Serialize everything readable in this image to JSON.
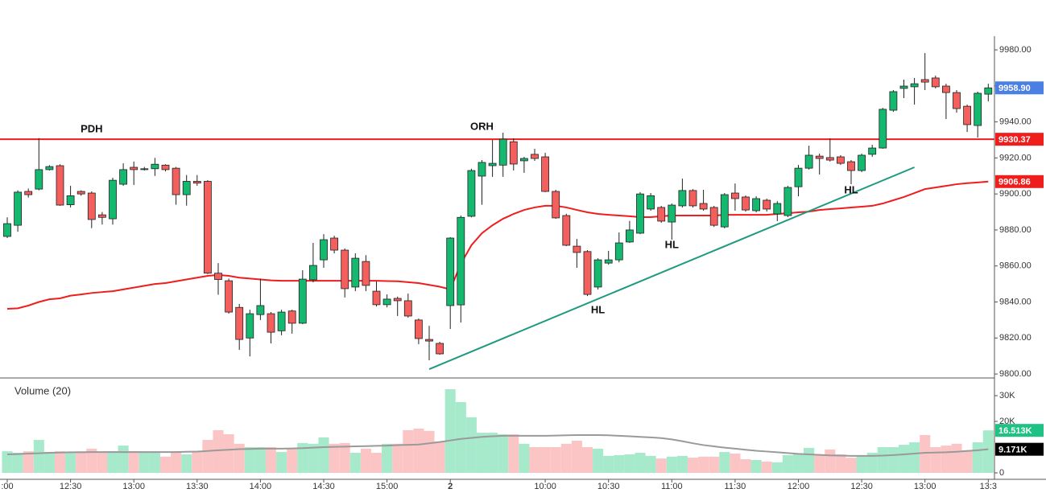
{
  "chart_data": {
    "type": "candlestick",
    "categories": [
      ":00",
      null,
      null,
      null,
      null,
      null,
      "12:30",
      null,
      null,
      null,
      null,
      null,
      "13:00",
      null,
      null,
      null,
      null,
      null,
      "13:30",
      null,
      null,
      null,
      null,
      null,
      "14:00",
      null,
      null,
      null,
      null,
      null,
      "14:30",
      null,
      null,
      null,
      null,
      null,
      "15:00",
      null,
      null,
      null,
      null,
      null,
      "2",
      null,
      null,
      null,
      null,
      null,
      null,
      null,
      null,
      "10:00",
      null,
      null,
      null,
      null,
      null,
      "10:30",
      null,
      null,
      null,
      null,
      null,
      "11:00",
      null,
      null,
      null,
      null,
      null,
      "11:30",
      null,
      null,
      null,
      null,
      null,
      "12:00",
      null,
      null,
      null,
      null,
      null,
      "12:30",
      null,
      null,
      null,
      null,
      null,
      "13:00",
      null,
      null,
      null,
      null,
      null,
      "13:3"
    ],
    "open": [
      9876.4,
      9882.6,
      9901.4,
      9902.7,
      9913.5,
      9915.7,
      9894,
      9901.4,
      9900.5,
      9888.4,
      9886.2,
      9905.4,
      9914.8,
      9913.5,
      9914,
      9916,
      9914.3,
      9899.6,
      9907,
      9907,
      9856,
      9851.8,
      9837,
      9820,
      9833,
      9833.5,
      9824,
      9835,
      9828.2,
      9852.3,
      9863.4,
      9875.5,
      9868.8,
      9848.3,
      9862.5,
      9846,
      9838.5,
      9842,
      9840.7,
      9830,
      9819.2,
      9817,
      9838,
      9838.4,
      9887.6,
      9909.9,
      9915.7,
      9916,
      9929,
      9918.4,
      9922,
      9920.6,
      9901.4,
      9888,
      9871,
      9868,
      9848.3,
      9861.6,
      9863.4,
      9873.3,
      9878.2,
      9891.6,
      9892.5,
      9884.4,
      9893.4,
      9901.9,
      9894.7,
      9892.5,
      9881.7,
      9900.5,
      9898.3,
      9890.7,
      9896.5,
      9888.9,
      9888,
      9904,
      9914.3,
      9921,
      9920.2,
      9920.6,
      9917.9,
      9913,
      9922,
      9925.5,
      9946.5,
      9958.6,
      9959.5,
      9963.5,
      9964.4,
      9959.9,
      9956.3,
      9948.7,
      9938,
      9955.4
    ],
    "high": [
      9887,
      9902,
      9903,
      9931,
      9916,
      9916.5,
      9904.5,
      9902,
      9901.4,
      9890,
      9909,
      9917,
      9918,
      9915,
      9920,
      9916.5,
      9915,
      9910.5,
      9910.5,
      9907.7,
      9861.6,
      9853,
      9838.9,
      9835.7,
      9853,
      9834.4,
      9835.7,
      9835.7,
      9857.6,
      9872.8,
      9877.7,
      9876.8,
      9869.7,
      9867,
      9866,
      9851.4,
      9844.2,
      9843,
      9844.7,
      9830.8,
      9826.8,
      9817.9,
      9876,
      9888,
      9914,
      9918.8,
      9930,
      9934,
      9930.9,
      9920.6,
      9925,
      9922.8,
      9902.3,
      9889,
      9875,
      9868.8,
      9864.3,
      9868.4,
      9878.6,
      9885,
      9901,
      9900.5,
      9893.4,
      9894.7,
      9908.5,
      9902.7,
      9902.3,
      9893.4,
      9900.5,
      9905.8,
      9899.2,
      9898.7,
      9897.4,
      9896,
      9904.5,
      9916.1,
      9926.8,
      9922.4,
      9930.9,
      9921.5,
      9918.8,
      9922.4,
      9927.3,
      9947.8,
      9957.7,
      9963.5,
      9964.4,
      9978.2,
      9965.7,
      9961.2,
      9957.7,
      9949.6,
      9956.8,
      9961.2
    ],
    "low": [
      9875.5,
      9879,
      9898,
      9902,
      9913,
      9893.4,
      9892.5,
      9899,
      9881,
      9883,
      9883,
      9904.5,
      9905,
      9913,
      9910,
      9912.5,
      9894,
      9893.5,
      9904.5,
      9855.5,
      9844,
      9833.5,
      9813.4,
      9809.8,
      9830,
      9817,
      9821.5,
      9822.4,
      9827.7,
      9850.9,
      9859,
      9867,
      9842.5,
      9846,
      9846,
      9837.5,
      9837,
      9832.2,
      9831.3,
      9816.6,
      9807.6,
      9810.7,
      9825,
      9828.6,
      9887,
      9894,
      9909.5,
      9909.5,
      9913,
      9911.7,
      9918.4,
      9901,
      9886.2,
      9871,
      9859,
      9843.3,
      9846.9,
      9860.7,
      9862,
      9872.8,
      9877.7,
      9890.7,
      9884,
      9874.6,
      9892.5,
      9892.5,
      9890.7,
      9881.7,
      9880.9,
      9890.7,
      9890.2,
      9889.8,
      9890.2,
      9884.9,
      9887.1,
      9898.7,
      9913.5,
      9910.8,
      9918,
      9916.1,
      9905.4,
      9912.1,
      9920.6,
      9925.1,
      9945.6,
      9953.2,
      9949.6,
      9957.7,
      9958.6,
      9941.6,
      9945.2,
      9934.4,
      9931.3,
      9951.4
    ],
    "close": [
      9883.5,
      9901,
      9899.6,
      9913.5,
      9915.2,
      9893.8,
      9899,
      9900,
      9885.8,
      9887,
      9907.6,
      9913.5,
      9913.5,
      9914,
      9916.5,
      9913.5,
      9899.6,
      9907,
      9906,
      9856,
      9852.5,
      9834.4,
      9819.2,
      9833.5,
      9838,
      9823.2,
      9834.4,
      9828.2,
      9852.7,
      9860.3,
      9874.6,
      9868.8,
      9847.4,
      9864.3,
      9849.2,
      9838.5,
      9841.6,
      9840.7,
      9832.2,
      9819.7,
      9818.3,
      9811.2,
      9875.5,
      9887,
      9913,
      9917.5,
      9917,
      9930.4,
      9916.6,
      9919.7,
      9919.7,
      9901.4,
      9886.7,
      9871.5,
      9867.5,
      9844.2,
      9863.4,
      9863.4,
      9872.8,
      9880,
      9900,
      9899,
      9884.9,
      9893.8,
      9901.9,
      9893.4,
      9891.6,
      9882.6,
      9899.6,
      9897.4,
      9891.1,
      9897.4,
      9891.6,
      9894.7,
      9903.6,
      9914.3,
      9921.5,
      9919.7,
      9918.8,
      9917,
      9913,
      9921.5,
      9925.5,
      9947,
      9956.8,
      9959.9,
      9961.2,
      9962.1,
      9959.5,
      9956.3,
      9947.4,
      9938.5,
      9955.9,
      9958.9
    ],
    "close_label": "9958.90",
    "close_label_color": "#4a7fe4",
    "up_color": "#14b86f",
    "down_color": "#f25f5c",
    "ylim": [
      9797.8,
      9987.6
    ],
    "yticks": [
      {
        "value": 9800,
        "label": "9800.00"
      },
      {
        "value": 9820,
        "label": "9820.00"
      },
      {
        "value": 9840,
        "label": "9840.00"
      },
      {
        "value": 9860,
        "label": "9860.00"
      },
      {
        "value": 9880,
        "label": "9880.00"
      },
      {
        "value": 9900,
        "label": "9900.00"
      },
      {
        "value": 9920,
        "label": "9920.00"
      },
      {
        "value": 9940,
        "label": "9940.00"
      },
      {
        "value": 9960,
        "label": "9960.00"
      },
      {
        "value": 9980,
        "label": "9980.00"
      }
    ],
    "hline": {
      "value": 9930.37,
      "label": "9930.37",
      "color": "#f01d1d"
    },
    "ma": {
      "color": "#f01d1d",
      "last_label": "9906.86",
      "values": [
        9836.2,
        9836.5,
        9838,
        9840,
        9841.5,
        9842,
        9843.5,
        9844.2,
        9845,
        9845.5,
        9846,
        9847,
        9848,
        9849,
        9850,
        9850.5,
        9851.5,
        9852.5,
        9853.5,
        9854.5,
        9855,
        9854.5,
        9853.5,
        9853,
        9852.5,
        9852,
        9851.8,
        9851.8,
        9851.8,
        9851.8,
        9851.8,
        9851.8,
        9851.8,
        9851.8,
        9851.8,
        9851.8,
        9851.6,
        9851.5,
        9851,
        9850.5,
        9849.5,
        9848.5,
        9847,
        9861.2,
        9871.5,
        9878.2,
        9882.6,
        9886.2,
        9888.9,
        9891.1,
        9892.5,
        9893.4,
        9893.4,
        9892.5,
        9891.1,
        9889.8,
        9888.9,
        9888.4,
        9888,
        9887.6,
        9887.1,
        9887.1,
        9887.6,
        9888,
        9888,
        9888,
        9888,
        9888,
        9888.4,
        9888.4,
        9888.4,
        9888.4,
        9888.4,
        9888.9,
        9889.3,
        9889.8,
        9890.2,
        9891.1,
        9891.6,
        9892,
        9892.5,
        9892.9,
        9893.4,
        9894.7,
        9896.5,
        9898.3,
        9900.5,
        9902.7,
        9903.6,
        9904.5,
        9905.4,
        9906,
        9906.4,
        9906.86
      ]
    },
    "trendline": {
      "color": "#1f9a80",
      "x": [
        40,
        86
      ],
      "y": [
        9802.7,
        9914.8
      ]
    },
    "annotations": [
      {
        "text": "PDH",
        "x": 8,
        "y": 9935.8
      },
      {
        "text": "ORH",
        "x": 45,
        "y": 9937.1
      },
      {
        "text": "HL",
        "x": 56,
        "y": 9835.3
      },
      {
        "text": "HL",
        "x": 63,
        "y": 9871.5
      },
      {
        "text": "HL",
        "x": 80,
        "y": 9901.8
      }
    ],
    "volume": {
      "title": "Volume (20)",
      "up_color": "#a6e9cb",
      "down_color": "#fbc5c5",
      "ma_color": "#9a9a9a",
      "last_label": "16.513K",
      "last_label_color": "#1fc283",
      "ma_last_label": "9.171K",
      "ma_last_label_color": "#000000",
      "ylim": [
        0,
        36875
      ],
      "yticks": [
        {
          "value": 0,
          "label": "0"
        },
        {
          "value": 20000,
          "label": "20K"
        },
        {
          "value": 30000,
          "label": "30K"
        }
      ],
      "values": [
        8400,
        7800,
        8400,
        12800,
        8100,
        8400,
        8100,
        8400,
        9400,
        7800,
        8400,
        10600,
        8400,
        8100,
        7800,
        6300,
        8400,
        7200,
        8100,
        12800,
        16600,
        15000,
        11300,
        10000,
        10000,
        10000,
        8100,
        9400,
        11600,
        11300,
        13800,
        11300,
        11600,
        7800,
        9400,
        7800,
        11300,
        11300,
        16600,
        17200,
        16300,
        12200,
        32500,
        27500,
        21600,
        15600,
        15600,
        15000,
        15000,
        11300,
        10000,
        10000,
        10000,
        11300,
        12500,
        10000,
        9400,
        6600,
        6900,
        7200,
        7800,
        6600,
        5600,
        6300,
        6600,
        5900,
        6300,
        6300,
        8100,
        7500,
        5300,
        5000,
        4400,
        4100,
        6900,
        7500,
        9700,
        7200,
        9100,
        7200,
        5900,
        6600,
        7800,
        10000,
        10000,
        10900,
        11900,
        14700,
        10000,
        10600,
        11300,
        8800,
        11900,
        16513
      ],
      "ma_values": [
        7200,
        7300,
        7500,
        7600,
        7800,
        7900,
        8000,
        8000,
        8100,
        8100,
        8100,
        8100,
        8100,
        8100,
        8100,
        8100,
        8100,
        8200,
        8300,
        8500,
        8800,
        9000,
        9200,
        9300,
        9400,
        9400,
        9400,
        9500,
        9600,
        9800,
        10000,
        10100,
        10200,
        10300,
        10400,
        10500,
        10600,
        10800,
        10900,
        11000,
        11500,
        12000,
        12600,
        13200,
        13600,
        14000,
        14200,
        14400,
        14400,
        14400,
        14400,
        14400,
        14500,
        14600,
        14700,
        14700,
        14700,
        14600,
        14400,
        14200,
        14000,
        13800,
        13500,
        13000,
        12300,
        11500,
        10800,
        10300,
        9800,
        9400,
        9000,
        8600,
        8300,
        8000,
        7700,
        7400,
        7200,
        7000,
        6800,
        6700,
        6600,
        6600,
        6600,
        6700,
        6900,
        7200,
        7500,
        7800,
        7900,
        8000,
        8200,
        8500,
        8800,
        9171
      ]
    }
  }
}
